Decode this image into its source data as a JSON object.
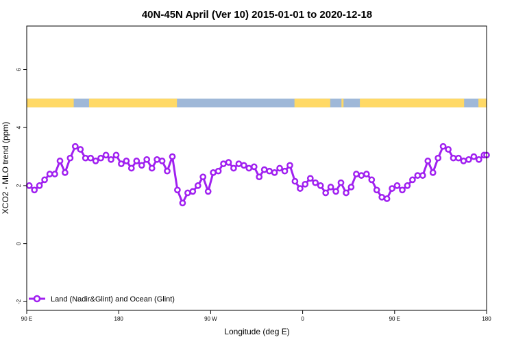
{
  "chart_data": {
    "type": "line",
    "title": "40N-45N April (Ver 10)   2015-01-01 to 2020-12-18",
    "xlabel": "Longitude (deg E)",
    "ylabel": "XCO2 - MLO trend (ppm)",
    "x_tick_labels": [
      "90 E",
      "180",
      "90 W",
      "0",
      "90 E",
      "180"
    ],
    "x_tick_values": [
      90,
      180,
      270,
      360,
      450,
      540
    ],
    "y_tick_labels": [
      "-2",
      "0",
      "2",
      "4",
      "6"
    ],
    "y_tick_values": [
      -2,
      0,
      2,
      4,
      6
    ],
    "xlim": [
      90,
      540
    ],
    "ylim": [
      -2.3,
      7.5
    ],
    "grid": false,
    "legend_position": "bottom-left",
    "colors": {
      "series": "#a020f0",
      "land": "#ffd966",
      "ocean": "#9fb8d8"
    },
    "landmask": {
      "y_range": [
        4.7,
        5.0
      ],
      "land_intervals": [
        [
          90,
          136
        ],
        [
          151,
          237
        ],
        [
          352,
          387
        ],
        [
          398,
          400
        ],
        [
          416,
          518
        ],
        [
          532,
          540
        ]
      ]
    },
    "series": [
      {
        "name": "Land (Nadir&Glint) and Ocean (Glint)",
        "x": [
          92.5,
          97.5,
          102.5,
          107.5,
          112.5,
          117.5,
          122.5,
          127.5,
          132.5,
          137.5,
          142.5,
          147.5,
          152.5,
          157.5,
          162.5,
          167.5,
          172.5,
          177.5,
          182.5,
          187.5,
          192.5,
          197.5,
          202.5,
          207.5,
          212.5,
          217.5,
          222.5,
          227.5,
          232.5,
          237.5,
          242.5,
          247.5,
          252.5,
          257.5,
          262.5,
          267.5,
          272.5,
          277.5,
          282.5,
          287.5,
          292.5,
          297.5,
          302.5,
          307.5,
          312.5,
          317.5,
          322.5,
          327.5,
          332.5,
          337.5,
          342.5,
          347.5,
          352.5,
          357.5,
          362.5,
          367.5,
          372.5,
          377.5,
          382.5,
          387.5,
          392.5,
          397.5,
          402.5,
          407.5,
          412.5,
          417.5,
          422.5,
          427.5,
          432.5,
          437.5,
          442.5,
          447.5,
          452.5,
          457.5,
          462.5,
          467.5,
          472.5,
          477.5,
          482.5,
          487.5,
          492.5,
          497.5,
          502.5,
          507.5,
          512.5,
          517.5,
          522.5,
          527.5,
          532.5,
          537.5,
          540
        ],
        "y": [
          2.0,
          1.85,
          2.0,
          2.2,
          2.4,
          2.4,
          2.85,
          2.45,
          2.95,
          3.35,
          3.25,
          2.95,
          2.95,
          2.85,
          2.95,
          3.05,
          2.9,
          3.05,
          2.75,
          2.85,
          2.6,
          2.85,
          2.7,
          2.9,
          2.6,
          2.9,
          2.85,
          2.5,
          3.0,
          1.85,
          1.4,
          1.75,
          1.8,
          2.0,
          2.3,
          1.8,
          2.45,
          2.5,
          2.75,
          2.8,
          2.6,
          2.75,
          2.7,
          2.6,
          2.65,
          2.3,
          2.55,
          2.5,
          2.45,
          2.6,
          2.5,
          2.7,
          2.15,
          1.9,
          2.05,
          2.25,
          2.1,
          2.0,
          1.75,
          1.95,
          1.8,
          2.1,
          1.75,
          1.95,
          2.4,
          2.35,
          2.4,
          2.2,
          1.85,
          1.6,
          1.55,
          1.9,
          2.0,
          1.85,
          2.0,
          2.2,
          2.35,
          2.35,
          2.85,
          2.45,
          2.95,
          3.35,
          3.25,
          2.95,
          2.95,
          2.85,
          2.9,
          3.0,
          2.9,
          3.05,
          3.05
        ]
      }
    ]
  }
}
